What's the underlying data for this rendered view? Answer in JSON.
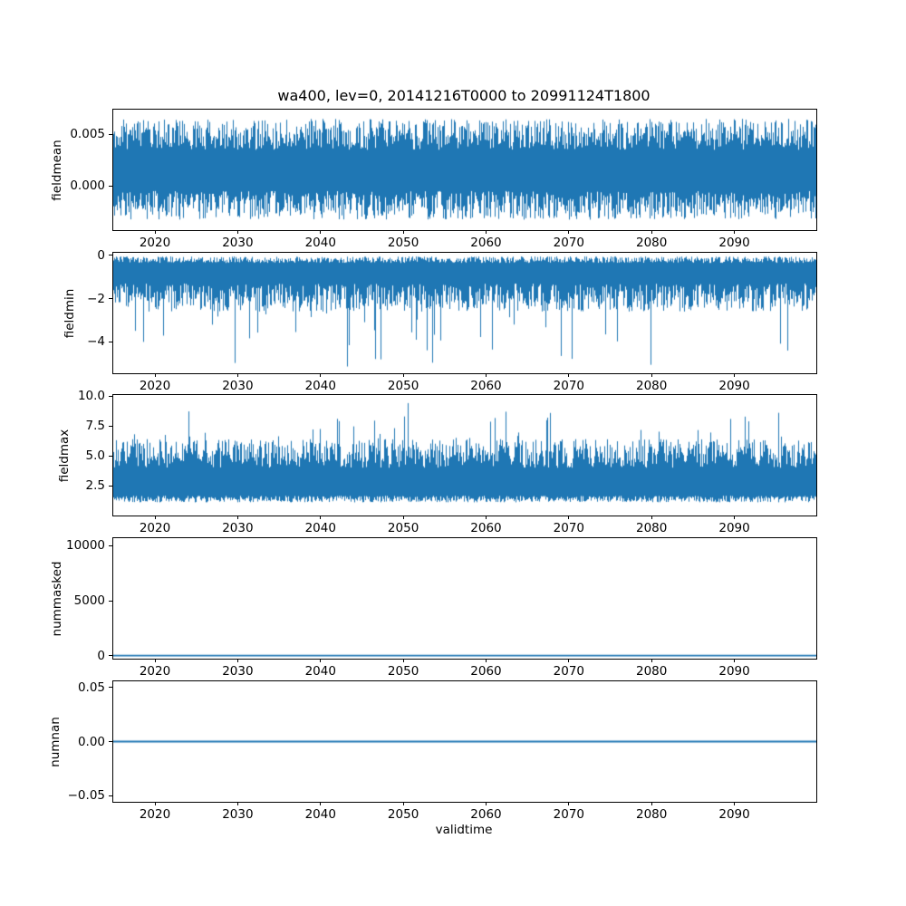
{
  "figure": {
    "title": "wa400, lev=0, 20141216T0000 to 20991124T1800",
    "xlabel": "validtime",
    "background": "#ffffff",
    "line_color": "#1f77b4",
    "xlim": [
      2014.96,
      2099.9
    ],
    "xticks": [
      2020,
      2030,
      2040,
      2050,
      2060,
      2070,
      2080,
      2090
    ],
    "xtick_labels": [
      "2020",
      "2030",
      "2040",
      "2050",
      "2060",
      "2070",
      "2080",
      "2090"
    ]
  },
  "chart_data": [
    {
      "type": "line",
      "series_name": "fieldmean",
      "ylabel": "fieldmean",
      "ylim": [
        -0.0043,
        0.0074
      ],
      "yticks": [
        {
          "value": 0.005,
          "label": "0.005"
        },
        {
          "value": 0.0,
          "label": "0.000"
        }
      ],
      "data": {
        "kind": "noise-band",
        "seed": 11,
        "hi_base": 0.0035,
        "hi_var": 0.003,
        "lo_base": -0.0005,
        "lo_var": -0.0028,
        "spike_p": 0.004,
        "spike_amp": 0.0012,
        "spike_side": "lo",
        "min": -0.0043,
        "max": 0.0069,
        "typical_band": [
          -0.003,
          0.0065
        ],
        "extreme_min": -0.0042,
        "extreme_max": 0.0069
      }
    },
    {
      "type": "line",
      "series_name": "fieldmin",
      "ylabel": "fieldmin",
      "ylim": [
        -5.45,
        0.12
      ],
      "yticks": [
        {
          "value": 0,
          "label": "0"
        },
        {
          "value": -2,
          "label": "−2"
        },
        {
          "value": -4,
          "label": "−4"
        }
      ],
      "data": {
        "kind": "noise-band",
        "seed": 22,
        "hi_base": -0.05,
        "hi_var": -0.3,
        "lo_base": -1.3,
        "lo_var": -1.3,
        "spike_p": 0.05,
        "spike_amp": 2.0,
        "spike_side": "lo",
        "min": -5.35,
        "max": -0.02,
        "typical_band": [
          -2.6,
          -0.05
        ],
        "extreme_min": -5.3,
        "extreme_max": -0.02
      }
    },
    {
      "type": "line",
      "series_name": "fieldmax",
      "ylabel": "fieldmax",
      "ylim": [
        0.0,
        10.1
      ],
      "yticks": [
        {
          "value": 10.0,
          "label": "10.0"
        },
        {
          "value": 7.5,
          "label": "7.5"
        },
        {
          "value": 5.0,
          "label": "5.0"
        },
        {
          "value": 2.5,
          "label": "2.5"
        }
      ],
      "data": {
        "kind": "noise-band",
        "seed": 33,
        "hi_base": 4.0,
        "hi_var": 2.4,
        "lo_base": 1.1,
        "lo_var": 0.55,
        "spike_p": 0.05,
        "spike_amp": 2.2,
        "spike_side": "hi",
        "min": 0.95,
        "max": 9.8,
        "typical_band": [
          1.1,
          6.5
        ],
        "extreme_min": 1.0,
        "extreme_max": 9.7
      }
    },
    {
      "type": "line",
      "series_name": "nummasked",
      "ylabel": "nummasked",
      "ylim": [
        -280,
        10700
      ],
      "yticks": [
        {
          "value": 10000,
          "label": "10000"
        },
        {
          "value": 5000,
          "label": "5000"
        },
        {
          "value": 0,
          "label": "0"
        }
      ],
      "data": {
        "kind": "constant",
        "value": 0
      }
    },
    {
      "type": "line",
      "series_name": "numnan",
      "ylabel": "numnan",
      "ylim": [
        -0.0555,
        0.0555
      ],
      "yticks": [
        {
          "value": 0.05,
          "label": "0.05"
        },
        {
          "value": 0.0,
          "label": "0.00"
        },
        {
          "value": -0.05,
          "label": "−0.05"
        }
      ],
      "data": {
        "kind": "constant",
        "value": 0
      }
    }
  ]
}
